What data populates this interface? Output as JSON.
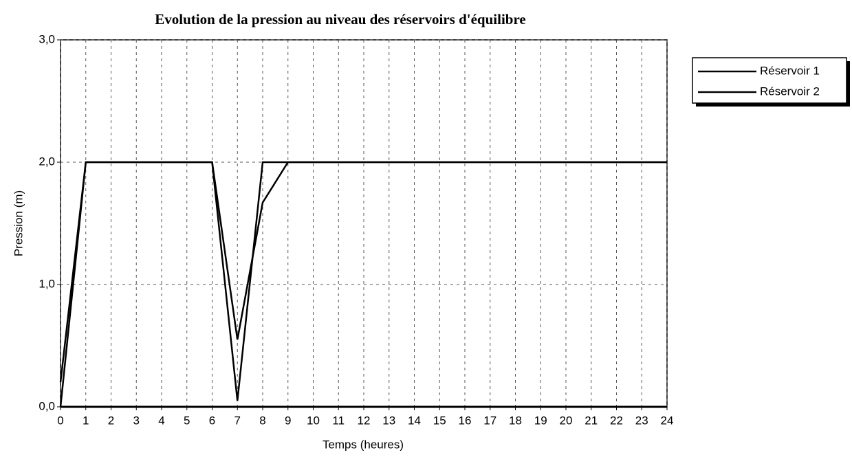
{
  "chart_data": {
    "type": "line",
    "title": "Evolution de la pression au niveau des réservoirs d'équilibre",
    "xlabel": "Temps (heures)",
    "ylabel": "Pression (m)",
    "x": [
      0,
      1,
      2,
      3,
      4,
      5,
      6,
      7,
      8,
      9,
      10,
      11,
      12,
      13,
      14,
      15,
      16,
      17,
      18,
      19,
      20,
      21,
      22,
      23,
      24
    ],
    "series": [
      {
        "name": "Réservoir 1",
        "color": "#000000",
        "values": [
          0.0,
          2,
          2,
          2,
          2,
          2,
          2,
          0.05,
          2,
          2,
          2,
          2,
          2,
          2,
          2,
          2,
          2,
          2,
          2,
          2,
          2,
          2,
          2,
          2,
          2
        ]
      },
      {
        "name": "Réservoir 2",
        "color": "#000000",
        "values": [
          0.2,
          2,
          2,
          2,
          2,
          2,
          2,
          0.55,
          1.67,
          2,
          2,
          2,
          2,
          2,
          2,
          2,
          2,
          2,
          2,
          2,
          2,
          2,
          2,
          2,
          2
        ]
      }
    ],
    "xlim": [
      0,
      24
    ],
    "xticks": [
      0,
      1,
      2,
      3,
      4,
      5,
      6,
      7,
      8,
      9,
      10,
      11,
      12,
      13,
      14,
      15,
      16,
      17,
      18,
      19,
      20,
      21,
      22,
      23,
      24
    ],
    "ylim": [
      0,
      3
    ],
    "yticks": [
      {
        "value": 0,
        "label": "0,0"
      },
      {
        "value": 1,
        "label": "1,0"
      },
      {
        "value": 2,
        "label": "2,0"
      },
      {
        "value": 3,
        "label": "3,0"
      }
    ],
    "grid": true,
    "legend": "right"
  }
}
